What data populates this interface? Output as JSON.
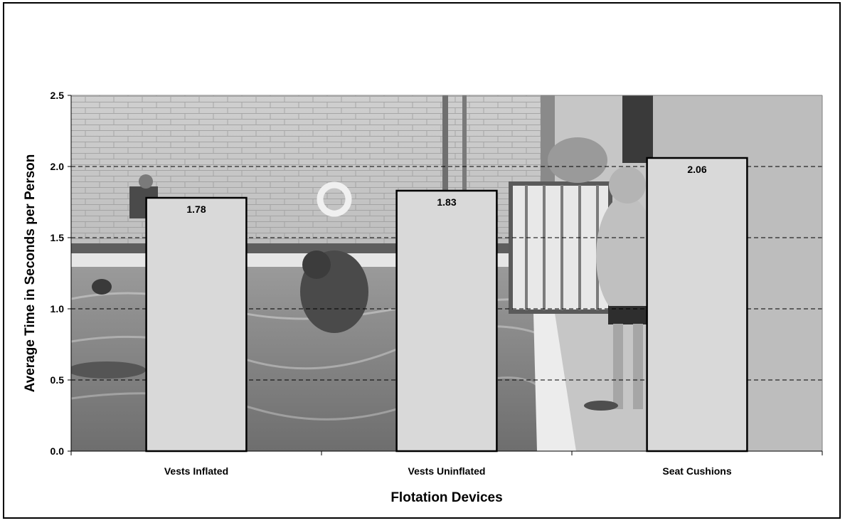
{
  "chart_data": {
    "type": "bar",
    "title": "",
    "xlabel": "Flotation Devices",
    "ylabel": "Average Time in Seconds per Person",
    "categories": [
      "Vests Inflated",
      "Vests Uninflated",
      "Seat Cushions"
    ],
    "values": [
      1.78,
      1.83,
      2.06
    ],
    "data_labels": [
      "1.78",
      "1.83",
      "2.06"
    ],
    "ylim": [
      0,
      2.5
    ],
    "yticks": [
      "0.0",
      "0.5",
      "1.0",
      "1.5",
      "2.0",
      "2.5"
    ],
    "grid": "horizontal dashed",
    "legend": "none",
    "background": "photo of people in a swimming pool with flotation devices",
    "colors": {
      "bar_fill": "#d9d9d9",
      "bar_stroke": "#000000",
      "grid": "#000000"
    }
  }
}
